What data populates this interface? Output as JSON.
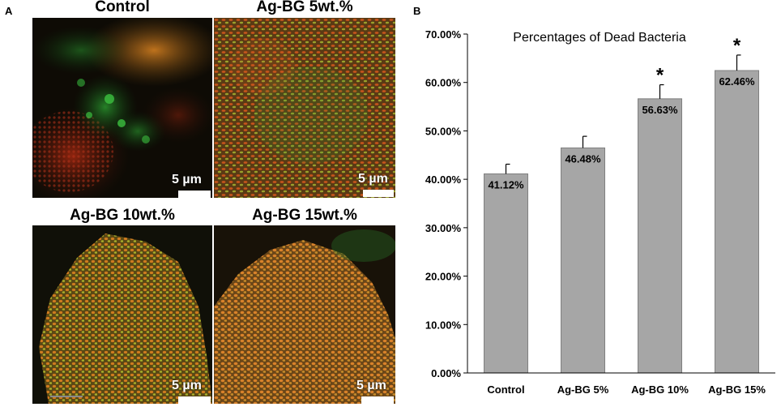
{
  "panel_a": {
    "letter": "A",
    "images": [
      {
        "title": "Control",
        "scale_label": "5 µm"
      },
      {
        "title": "Ag-BG 5wt.%",
        "scale_label": "5 µm"
      },
      {
        "title": "Ag-BG 10wt.%",
        "scale_label": "5 µm"
      },
      {
        "title": "Ag-BG 15wt.%",
        "scale_label": "5 µm"
      }
    ]
  },
  "panel_b": {
    "letter": "B"
  },
  "chart_data": {
    "type": "bar",
    "title": "Percentages of Dead Bacteria",
    "categories": [
      "Control",
      "Ag-BG 5%",
      "Ag-BG 10%",
      "Ag-BG 15%"
    ],
    "values": [
      41.12,
      46.48,
      56.63,
      62.46
    ],
    "errors": [
      2.0,
      2.4,
      2.9,
      3.2
    ],
    "data_labels": [
      "41.12%",
      "46.48%",
      "56.63%",
      "62.46%"
    ],
    "significance": [
      "",
      "",
      "*",
      "*"
    ],
    "ylim": [
      0,
      70
    ],
    "yticks": [
      0,
      10,
      20,
      30,
      40,
      50,
      60,
      70
    ],
    "ytick_labels": [
      "0.00%",
      "10.00%",
      "20.00%",
      "30.00%",
      "40.00%",
      "50.00%",
      "60.00%",
      "70.00%"
    ],
    "xlabel": "",
    "ylabel": "",
    "colors": {
      "bar": "#a6a6a6",
      "bar_edge": "#7f7f7f",
      "axis": "#000000"
    }
  }
}
